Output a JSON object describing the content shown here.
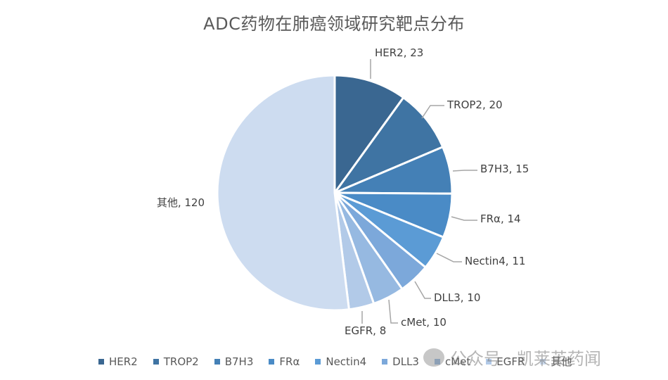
{
  "title": "ADC药物在肺癌领域研究靶点分布",
  "chart_data": {
    "type": "pie",
    "title": "ADC药物在肺癌领域研究靶点分布",
    "categories": [
      "HER2",
      "TROP2",
      "B7H3",
      "FRα",
      "Nectin4",
      "DLL3",
      "cMet",
      "EGFR",
      "其他"
    ],
    "values": [
      23,
      20,
      15,
      14,
      11,
      10,
      10,
      8,
      120
    ],
    "colors": [
      "#3a6791",
      "#3f74a3",
      "#4480b6",
      "#4a8bc6",
      "#5b9bd5",
      "#7ca8da",
      "#96b9e1",
      "#b2cae8",
      "#cddcf0"
    ],
    "data_labels": [
      "HER2, 23",
      "TROP2, 20",
      "B7H3, 15",
      "FRα, 14",
      "Nectin4, 11",
      "DLL3, 10",
      "cMet, 10",
      "EGFR, 8",
      "其他, 120"
    ],
    "legend_position": "bottom",
    "start_angle_deg": 0,
    "direction": "clockwise"
  },
  "legend": {
    "items": [
      "HER2",
      "TROP2",
      "B7H3",
      "FRα",
      "Nectin4",
      "DLL3",
      "cMet",
      "EGFR",
      "其他"
    ]
  },
  "watermark": "公众号 · 凯莱英药闻"
}
